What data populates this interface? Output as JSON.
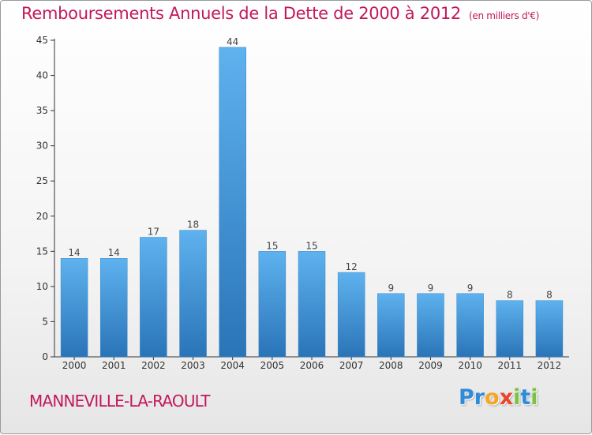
{
  "chart_data": {
    "type": "bar",
    "title": "Remboursements Annuels de la Dette de 2000 à 2012",
    "subtitle": "(en milliers d'€)",
    "xlabel": "",
    "ylabel": "",
    "categories": [
      "2000",
      "2001",
      "2002",
      "2003",
      "2004",
      "2005",
      "2006",
      "2007",
      "2008",
      "2009",
      "2010",
      "2011",
      "2012"
    ],
    "values": [
      14,
      14,
      17,
      18,
      44,
      15,
      15,
      12,
      9,
      9,
      9,
      8,
      8
    ],
    "data_labels": [
      "14",
      "14",
      "17",
      "18",
      "44",
      "15",
      "15",
      "12",
      "9",
      "9",
      "9",
      "8",
      "8"
    ],
    "ylim": [
      0,
      45
    ],
    "yticks": [
      "0",
      "5",
      "10",
      "15",
      "20",
      "25",
      "30",
      "35",
      "40",
      "45"
    ],
    "grid": false,
    "bar_color": "#4a9fe0",
    "bar_color_dark": "#2a74b8"
  },
  "footer": {
    "commune": "MANNEVILLE-LA-RAOULT",
    "logo_letters": [
      "P",
      "r",
      "o",
      "x",
      "i",
      "t",
      "i"
    ],
    "logo_colors": [
      "#2e8bd8",
      "#2e8bd8",
      "#f5a623",
      "#e8462c",
      "#7cc242",
      "#2e8bd8",
      "#7cc242"
    ]
  },
  "colors": {
    "accent": "#c2185b",
    "axis": "#333333"
  }
}
